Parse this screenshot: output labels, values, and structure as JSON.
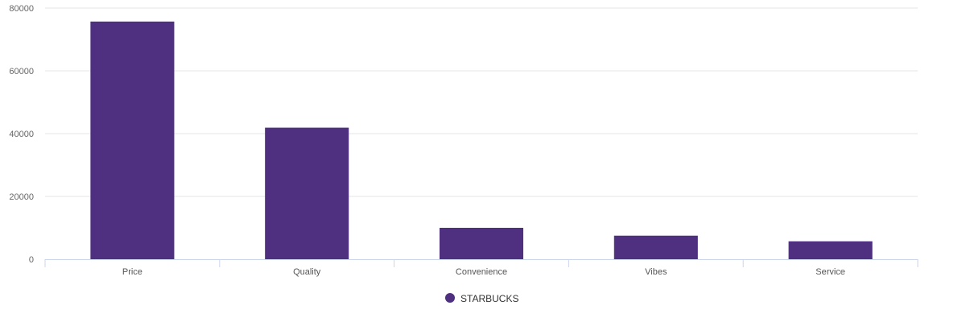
{
  "chart_data": {
    "type": "bar",
    "title": "",
    "xlabel": "",
    "ylabel": "",
    "categories": [
      "Price",
      "Quality",
      "Convenience",
      "Vibes",
      "Service"
    ],
    "series": [
      {
        "name": "STARBUCKS",
        "color": "#4f2f7f",
        "values": [
          75700,
          41900,
          10000,
          7500,
          5700
        ]
      }
    ],
    "ylim": [
      0,
      80000
    ],
    "yticks": [
      0,
      20000,
      40000,
      60000,
      80000
    ],
    "grid": true,
    "legend_position": "bottom-center"
  },
  "colors": {
    "bar": "#4f2f7f",
    "grid": "#e6e6e6",
    "axis": "#ccd6eb"
  }
}
